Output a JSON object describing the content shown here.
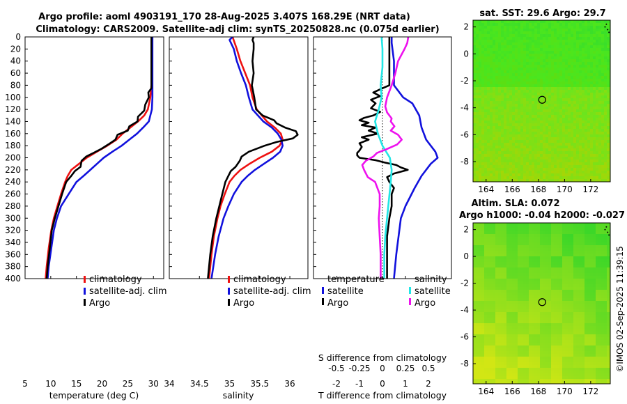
{
  "title": {
    "line1": "Argo profile: aoml 4903191_170 28-Aug-2025 3.407S 168.29E (NRT data)",
    "line2": "Climatology: CARS2009. Satellite-adj clim: synTS_20250828.nc (0.075d earlier)"
  },
  "colors": {
    "climatology": "#ee1111",
    "satellite": "#1111dd",
    "argo": "#000000",
    "temp_diff": "#1111dd",
    "sal_diff_argo": "#ee11ee",
    "sal_diff_sat": "#22e6e6"
  },
  "depth_ticks": [
    "0",
    "20",
    "40",
    "60",
    "80",
    "100",
    "120",
    "140",
    "160",
    "180",
    "200",
    "220",
    "240",
    "260",
    "280",
    "300",
    "320",
    "340",
    "360",
    "380",
    "400"
  ],
  "chart_data": [
    {
      "type": "line",
      "xlabel": "temperature (deg C)",
      "ylabel": "",
      "xlim": [
        5,
        32
      ],
      "ylim": [
        400,
        0
      ],
      "xticks": [
        "5",
        "10",
        "15",
        "20",
        "25",
        "30"
      ],
      "legend": [
        "climatology",
        "satellite-adj. clim",
        "Argo"
      ],
      "series": [
        {
          "name": "climatology",
          "color": "#ee1111",
          "depth": [
            0,
            80,
            100,
            120,
            130,
            140,
            150,
            160,
            170,
            180,
            190,
            200,
            210,
            220,
            230,
            240,
            260,
            280,
            300,
            320,
            350,
            380,
            400
          ],
          "values": [
            29.6,
            29.6,
            29.4,
            28.9,
            28.2,
            27.0,
            25.5,
            24.0,
            22.8,
            21.0,
            19.0,
            17.0,
            15.5,
            14.0,
            13.3,
            12.8,
            12.0,
            11.3,
            10.6,
            10.1,
            9.6,
            9.2,
            9.0
          ]
        },
        {
          "name": "satellite-adj. clim",
          "color": "#1111dd",
          "depth": [
            0,
            80,
            100,
            120,
            140,
            150,
            160,
            170,
            180,
            190,
            200,
            210,
            220,
            230,
            240,
            260,
            280,
            300,
            320,
            350,
            380,
            400
          ],
          "values": [
            29.8,
            29.8,
            29.8,
            29.7,
            29.1,
            28.0,
            26.8,
            25.3,
            23.8,
            22.0,
            20.3,
            19.0,
            17.7,
            16.4,
            15.0,
            13.5,
            12.0,
            11.2,
            10.6,
            10.1,
            9.6,
            9.4
          ]
        },
        {
          "name": "Argo",
          "color": "#000000",
          "depth": [
            0,
            85,
            92,
            100,
            112,
            122,
            132,
            140,
            148,
            155,
            162,
            170,
            178,
            185,
            192,
            198,
            205,
            215,
            222,
            230,
            240,
            260,
            280,
            300,
            320,
            350,
            380,
            400
          ],
          "values": [
            29.6,
            29.6,
            29.0,
            29.1,
            28.4,
            28.2,
            27.0,
            26.9,
            25.3,
            25.0,
            23.0,
            22.6,
            21.2,
            19.9,
            18.3,
            16.9,
            16.0,
            15.8,
            14.7,
            14.0,
            13.0,
            12.2,
            11.5,
            10.8,
            10.2,
            9.8,
            9.4,
            9.2
          ]
        }
      ]
    },
    {
      "type": "line",
      "xlabel": "salinity",
      "ylabel": "",
      "xlim": [
        34,
        36.3
      ],
      "ylim": [
        400,
        0
      ],
      "xticks": [
        "34",
        "34.5",
        "35",
        "35.5",
        "36"
      ],
      "legend": [
        "climatology",
        "satellite-adj. clim",
        "Argo"
      ],
      "series": [
        {
          "name": "climatology",
          "color": "#ee1111",
          "depth": [
            0,
            20,
            40,
            60,
            80,
            100,
            120,
            140,
            150,
            160,
            170,
            180,
            190,
            200,
            210,
            220,
            230,
            240,
            260,
            280,
            300,
            330,
            360,
            400
          ],
          "values": [
            35.05,
            35.12,
            35.18,
            35.26,
            35.34,
            35.38,
            35.45,
            35.62,
            35.75,
            35.85,
            35.88,
            35.83,
            35.7,
            35.5,
            35.33,
            35.18,
            35.08,
            35.0,
            34.92,
            34.85,
            34.8,
            34.74,
            34.7,
            34.66
          ]
        },
        {
          "name": "satellite-adj. clim",
          "color": "#1111dd",
          "depth": [
            0,
            5,
            20,
            40,
            60,
            80,
            100,
            120,
            140,
            150,
            160,
            170,
            180,
            190,
            200,
            210,
            220,
            230,
            240,
            260,
            280,
            300,
            330,
            360,
            400
          ],
          "values": [
            35.05,
            35.0,
            35.07,
            35.12,
            35.19,
            35.27,
            35.32,
            35.38,
            35.56,
            35.7,
            35.8,
            35.86,
            35.88,
            35.84,
            35.72,
            35.57,
            35.42,
            35.3,
            35.2,
            35.07,
            34.98,
            34.9,
            34.82,
            34.76,
            34.7
          ]
        },
        {
          "name": "Argo",
          "color": "#000000",
          "depth": [
            0,
            5,
            10,
            20,
            40,
            60,
            80,
            100,
            120,
            130,
            138,
            143,
            150,
            156,
            162,
            168,
            174,
            180,
            190,
            198,
            205,
            215,
            222,
            230,
            240,
            260,
            280,
            300,
            330,
            360,
            400
          ],
          "values": [
            35.4,
            35.38,
            35.4,
            35.4,
            35.38,
            35.4,
            35.37,
            35.41,
            35.44,
            35.55,
            35.74,
            35.78,
            35.92,
            36.1,
            36.13,
            36.05,
            35.78,
            35.58,
            35.32,
            35.2,
            35.17,
            35.1,
            35.02,
            34.98,
            34.93,
            34.88,
            34.83,
            34.78,
            34.72,
            34.68,
            34.64
          ]
        }
      ]
    },
    {
      "type": "line",
      "xlabel": "T difference from climatology",
      "x2label": "S difference from climatology",
      "xlim": [
        -3,
        3
      ],
      "x2lim": [
        -0.75,
        0.75
      ],
      "ylim": [
        400,
        0
      ],
      "xticks": [
        "-2",
        "-1",
        "0",
        "1",
        "2"
      ],
      "x2ticks": [
        "-0.5",
        "-0.25",
        "0",
        "0.25",
        "0.5"
      ],
      "legend_left": {
        "header": "temperature",
        "items": [
          "satellite",
          "Argo"
        ]
      },
      "legend_right": {
        "header": "salinity",
        "items": [
          "satellite",
          "Argo"
        ]
      },
      "series": [
        {
          "name": "temperature satellite",
          "color": "#1111dd",
          "axis": "T",
          "depth": [
            0,
            10,
            40,
            80,
            100,
            110,
            130,
            150,
            170,
            190,
            200,
            210,
            230,
            250,
            280,
            300,
            330,
            360,
            400
          ],
          "values": [
            0.4,
            0.4,
            0.5,
            0.5,
            0.9,
            1.3,
            1.6,
            1.7,
            1.9,
            2.3,
            2.4,
            2.1,
            1.7,
            1.4,
            1.0,
            0.8,
            0.7,
            0.6,
            0.5
          ]
        },
        {
          "name": "temperature Argo",
          "color": "#000000",
          "axis": "T",
          "depth": [
            0,
            80,
            85,
            92,
            98,
            104,
            110,
            118,
            124,
            130,
            134,
            138,
            142,
            146,
            150,
            155,
            160,
            166,
            170,
            176,
            182,
            188,
            192,
            196,
            200,
            204,
            208,
            212,
            216,
            220,
            226,
            232,
            240,
            250,
            260,
            280,
            300,
            330,
            360,
            400
          ],
          "values": [
            0.3,
            0.3,
            0.0,
            -0.4,
            -0.1,
            -0.5,
            -0.3,
            -0.5,
            -0.1,
            -0.4,
            -0.8,
            -1.0,
            -0.6,
            -0.9,
            -0.3,
            -0.6,
            -0.2,
            -0.9,
            -0.6,
            -1.0,
            -0.9,
            -1.0,
            -1.1,
            -1.1,
            -1.0,
            -0.3,
            0.1,
            0.6,
            0.8,
            1.1,
            0.5,
            0.2,
            0.3,
            0.5,
            0.4,
            0.4,
            0.3,
            0.2,
            0.2,
            0.2
          ]
        },
        {
          "name": "salinity satellite",
          "color": "#22e6e6",
          "axis": "S",
          "depth": [
            0,
            20,
            50,
            80,
            100,
            120,
            140,
            160,
            180,
            200,
            220,
            240,
            270,
            300,
            330,
            360,
            400
          ],
          "values": [
            -0.01,
            0.0,
            0.0,
            -0.02,
            -0.01,
            -0.04,
            -0.08,
            -0.05,
            0.0,
            0.08,
            0.1,
            0.09,
            0.07,
            0.05,
            0.03,
            0.02,
            0.02
          ]
        },
        {
          "name": "salinity Argo",
          "color": "#ee11ee",
          "axis": "S",
          "depth": [
            0,
            10,
            20,
            40,
            60,
            80,
            100,
            115,
            125,
            135,
            140,
            148,
            155,
            162,
            170,
            178,
            186,
            192,
            198,
            205,
            212,
            220,
            232,
            240,
            260,
            280,
            300,
            330,
            360,
            400
          ],
          "values": [
            0.28,
            0.27,
            0.24,
            0.17,
            0.14,
            0.1,
            0.05,
            0.03,
            0.05,
            0.1,
            0.09,
            0.13,
            0.09,
            0.17,
            0.21,
            0.16,
            0.04,
            -0.06,
            -0.1,
            -0.18,
            -0.22,
            -0.2,
            -0.16,
            -0.08,
            -0.03,
            -0.03,
            -0.04,
            -0.03,
            -0.02,
            -0.02
          ]
        }
      ]
    },
    {
      "type": "heatmap",
      "title": "sat. SST: 29.6 Argo: 29.7",
      "xticks": [
        "164",
        "166",
        "168",
        "170",
        "172"
      ],
      "yticks": [
        "2",
        "0",
        "-2",
        "-4",
        "-6",
        "-8"
      ],
      "xlim": [
        163,
        173.5
      ],
      "ylim": [
        -9.5,
        2.5
      ],
      "marker": [
        168.29,
        -3.41
      ]
    },
    {
      "type": "heatmap",
      "title": "Altim. SLA: 0.072",
      "subtitle": "Argo h1000: -0.04 h2000: -0.027",
      "xticks": [
        "164",
        "166",
        "168",
        "170",
        "172"
      ],
      "yticks": [
        "2",
        "0",
        "-2",
        "-4",
        "-6",
        "-8"
      ],
      "xlim": [
        163,
        173.5
      ],
      "ylim": [
        -9.5,
        2.5
      ],
      "marker": [
        168.29,
        -3.41
      ]
    }
  ],
  "credit": "©IMOS 02-Sep-2025 11:39:15"
}
